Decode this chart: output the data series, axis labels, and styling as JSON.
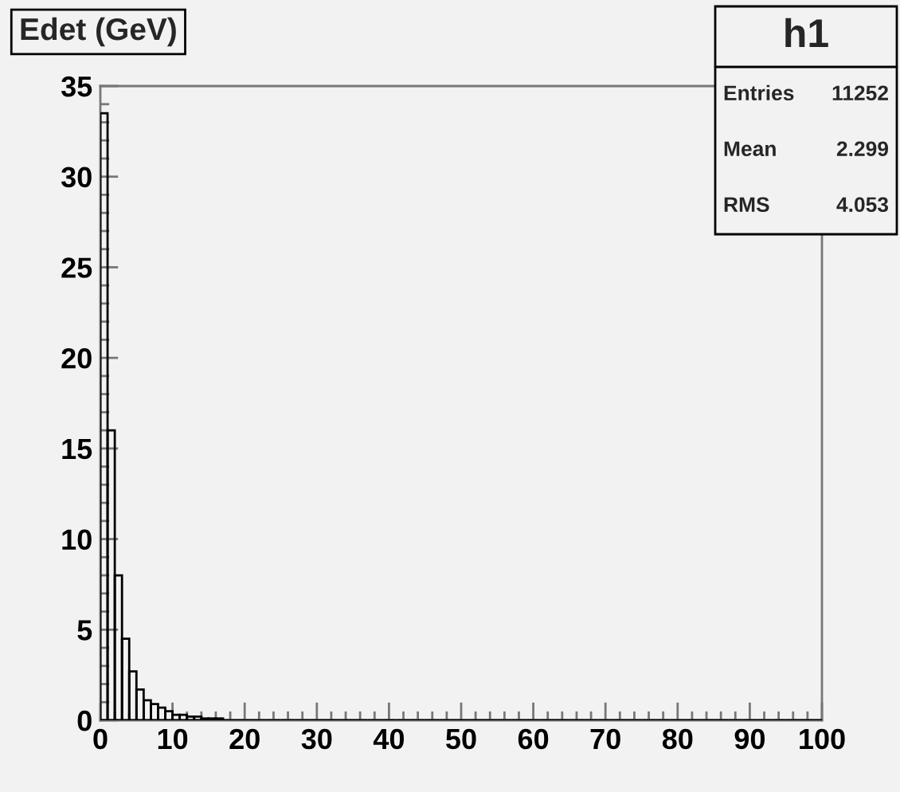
{
  "chart_data": {
    "type": "histogram",
    "title": "Edet (GeV)",
    "annotations": [
      "h1",
      "Entries",
      "11252",
      "Mean",
      "2.299",
      "RMS",
      "4.053"
    ],
    "bins": [
      0,
      1,
      2,
      3,
      4,
      5,
      6,
      7,
      8,
      9,
      10,
      11,
      12,
      13,
      14,
      15,
      16,
      17,
      18,
      19,
      20,
      21,
      22,
      23,
      24,
      25,
      26,
      27,
      28,
      29,
      30,
      31,
      32,
      33,
      34,
      35,
      36,
      37,
      38,
      39,
      40,
      41,
      42,
      43,
      44,
      45,
      46,
      47,
      48,
      49,
      50,
      51,
      52,
      53,
      54,
      55,
      56,
      57,
      58,
      59,
      60,
      61,
      62,
      63,
      64,
      65,
      66,
      67,
      68,
      69,
      70,
      71,
      72,
      73,
      74,
      75,
      76,
      77,
      78,
      79,
      80,
      81,
      82,
      83,
      84,
      85,
      86,
      87,
      88,
      89,
      90,
      91,
      92,
      93,
      94,
      95,
      96,
      97,
      98,
      99,
      100
    ],
    "values": [
      33.5,
      16.0,
      8.0,
      4.5,
      2.7,
      1.7,
      1.1,
      0.9,
      0.7,
      0.5,
      0.3,
      0.3,
      0.2,
      0.2,
      0.1,
      0.1,
      0.1,
      0,
      0,
      0,
      0,
      0,
      0,
      0,
      0,
      0,
      0,
      0,
      0,
      0,
      0,
      0,
      0,
      0,
      0,
      0,
      0,
      0,
      0,
      0,
      0,
      0,
      0,
      0,
      0,
      0,
      0,
      0,
      0,
      0,
      0,
      0,
      0,
      0,
      0,
      0,
      0,
      0,
      0,
      0,
      0,
      0,
      0,
      0,
      0,
      0,
      0,
      0,
      0,
      0,
      0,
      0,
      0,
      0,
      0,
      0,
      0,
      0,
      0,
      0,
      0,
      0,
      0,
      0,
      0,
      0,
      0,
      0,
      0,
      0,
      0,
      0,
      0,
      0,
      0,
      0,
      0,
      0,
      0,
      0
    ],
    "color": "#000000",
    "xlim": [
      0,
      100
    ],
    "xticks": [
      0,
      10,
      20,
      30,
      40,
      50,
      60,
      70,
      80,
      90,
      100
    ],
    "ylim": [
      0,
      35
    ],
    "yticks": [
      0,
      5,
      10,
      15,
      20,
      25,
      30,
      35
    ],
    "grid": false,
    "legend": false
  }
}
